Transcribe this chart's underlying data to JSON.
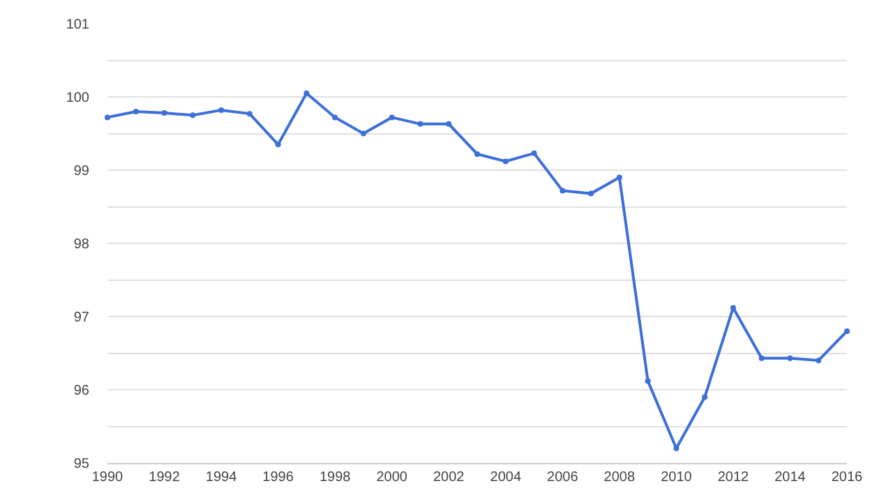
{
  "chart_data": {
    "type": "line",
    "x": [
      1990,
      1991,
      1992,
      1993,
      1994,
      1995,
      1996,
      1997,
      1998,
      1999,
      2000,
      2001,
      2002,
      2003,
      2004,
      2005,
      2006,
      2007,
      2008,
      2009,
      2010,
      2011,
      2012,
      2013,
      2014,
      2015,
      2016
    ],
    "series": [
      {
        "color": "#3c6fd8",
        "values": [
          99.72,
          99.8,
          99.78,
          99.75,
          99.82,
          99.77,
          99.35,
          100.05,
          99.72,
          99.5,
          99.72,
          99.63,
          99.63,
          99.22,
          99.12,
          99.23,
          98.72,
          98.68,
          98.9,
          96.12,
          95.2,
          95.9,
          97.12,
          96.43,
          96.43,
          96.4,
          96.8
        ]
      }
    ],
    "xlim": [
      1990,
      2016
    ],
    "xticks": [
      1990,
      1992,
      1994,
      1996,
      1998,
      2000,
      2002,
      2004,
      2006,
      2008,
      2010,
      2012,
      2014,
      2016
    ],
    "ylim": [
      95,
      101
    ],
    "yticks": [
      95,
      {
        "value": 95.5,
        "label": null
      },
      96,
      {
        "value": 96.5,
        "label": null
      },
      97,
      {
        "value": 97.5,
        "label": null
      },
      98,
      {
        "value": 98.5,
        "label": null
      },
      99,
      {
        "value": 99.5,
        "label": null
      },
      100,
      {
        "value": 100.5,
        "label": null
      },
      101
    ],
    "grid": "y",
    "legend": false,
    "marker": "circle",
    "line_style": "solid"
  }
}
